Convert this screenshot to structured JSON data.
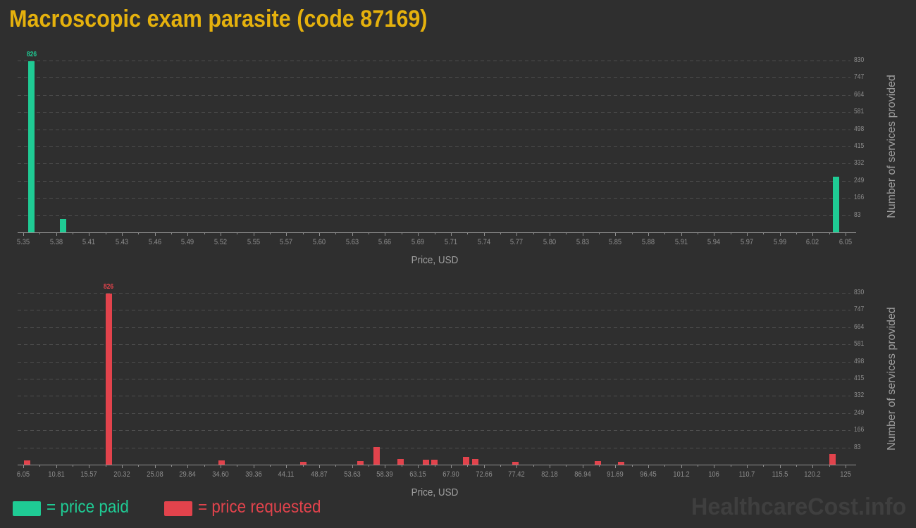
{
  "title": "Macroscopic exam parasite (code 87169)",
  "watermark": "HealthcareCost.info",
  "legend": {
    "paid": "= price paid",
    "requested": "= price requested"
  },
  "colors": {
    "background": "#2f2f2f",
    "title": "#e5b10d",
    "paid": "#1fcb94",
    "requested": "#e2434c",
    "grid": "#4e4e4e",
    "axis": "#8f8f8f",
    "tick_label": "#8d8d8d",
    "axis_title": "#9e9e9e",
    "watermark": "#3f3f3f"
  },
  "chart_data": [
    {
      "type": "bar",
      "series": "paid",
      "series_name": "price paid",
      "xlabel": "Price, USD",
      "ylabel": "Number of services provided",
      "grid": true,
      "legend_position": "bottom-left",
      "x_range": [
        5.35,
        6.05
      ],
      "x_ticks": [
        "5.35",
        "5.38",
        "5.41",
        "5.43",
        "5.46",
        "5.49",
        "5.52",
        "5.55",
        "5.57",
        "5.60",
        "5.63",
        "5.66",
        "5.69",
        "5.71",
        "5.74",
        "5.77",
        "5.80",
        "5.83",
        "5.85",
        "5.88",
        "5.91",
        "5.94",
        "5.97",
        "5.99",
        "6.02",
        "6.05"
      ],
      "y_ticks": [
        83,
        166,
        249,
        332,
        415,
        498,
        581,
        664,
        747,
        830
      ],
      "y_range": [
        0,
        855
      ],
      "bars": [
        {
          "x": 5.357,
          "value": 826,
          "label": "826"
        },
        {
          "x": 5.384,
          "value": 66
        },
        {
          "x": 6.042,
          "value": 268
        }
      ]
    },
    {
      "type": "bar",
      "series": "requested",
      "series_name": "price requested",
      "xlabel": "Price, USD",
      "ylabel": "Number of services provided",
      "grid": true,
      "legend_position": "bottom-left",
      "x_range": [
        6.05,
        125
      ],
      "x_ticks": [
        "6.05",
        "10.81",
        "15.57",
        "20.32",
        "25.08",
        "29.84",
        "34.60",
        "39.36",
        "44.11",
        "48.87",
        "53.63",
        "58.39",
        "63.15",
        "67.90",
        "72.66",
        "77.42",
        "82.18",
        "86.94",
        "91.69",
        "96.45",
        "101.2",
        "106",
        "110.7",
        "115.5",
        "120.2",
        "125"
      ],
      "y_ticks": [
        83,
        166,
        249,
        332,
        415,
        498,
        581,
        664,
        747,
        830
      ],
      "y_range": [
        0,
        855
      ],
      "bars": [
        {
          "x": 6.56,
          "value": 20
        },
        {
          "x": 18.4,
          "value": 826,
          "label": "826"
        },
        {
          "x": 34.75,
          "value": 22
        },
        {
          "x": 46.6,
          "value": 15
        },
        {
          "x": 54.8,
          "value": 18
        },
        {
          "x": 57.2,
          "value": 85
        },
        {
          "x": 60.6,
          "value": 27
        },
        {
          "x": 64.3,
          "value": 24
        },
        {
          "x": 65.5,
          "value": 24
        },
        {
          "x": 70.1,
          "value": 36
        },
        {
          "x": 71.4,
          "value": 27
        },
        {
          "x": 77.2,
          "value": 15
        },
        {
          "x": 89.2,
          "value": 17
        },
        {
          "x": 92.5,
          "value": 13
        },
        {
          "x": 123.1,
          "value": 52
        }
      ]
    }
  ]
}
